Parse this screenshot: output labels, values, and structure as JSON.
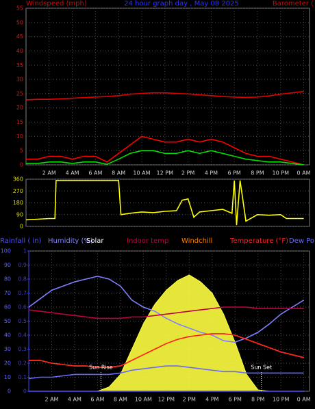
{
  "chart_data": [
    {
      "type": "line",
      "title": "24 hour graph day , May 08 2025",
      "left_label": "Windspeed (mph)",
      "right_label": "Barometer (",
      "tick_color": "#d02020",
      "xlim": [
        0,
        24.5
      ],
      "xticks": [
        {
          "value": 2,
          "label": "2 AM"
        },
        {
          "value": 4,
          "label": "4 AM"
        },
        {
          "value": 6,
          "label": "6 AM"
        },
        {
          "value": 8,
          "label": "8 AM"
        },
        {
          "value": 10,
          "label": "10 AM"
        },
        {
          "value": 12,
          "label": "12 PM"
        },
        {
          "value": 14,
          "label": "2 PM"
        },
        {
          "value": 16,
          "label": "4 PM"
        },
        {
          "value": 18,
          "label": "6 PM"
        },
        {
          "value": 20,
          "label": "8 PM"
        },
        {
          "value": 22,
          "label": "10 PM"
        },
        {
          "value": 24,
          "label": "0 AM"
        }
      ],
      "ylim": [
        0,
        55
      ],
      "yticks": [
        0,
        5,
        10,
        15,
        20,
        25,
        30,
        35,
        40,
        45,
        50,
        55
      ],
      "grid": true,
      "x": [
        0,
        1,
        2,
        3,
        4,
        5,
        6,
        7,
        8,
        9,
        10,
        11,
        12,
        13,
        14,
        15,
        16,
        17,
        18,
        19,
        20,
        21,
        22,
        23,
        24
      ],
      "series": [
        {
          "name": "Barometer",
          "color": "#e00000",
          "values": [
            22.8,
            23,
            23,
            23.2,
            23.4,
            23.6,
            23.8,
            24,
            24.3,
            24.8,
            25.1,
            25.3,
            25.3,
            25.1,
            24.9,
            24.6,
            24.3,
            24,
            23.8,
            23.7,
            23.8,
            24.2,
            24.8,
            25.3,
            25.8
          ]
        },
        {
          "name": "Gust",
          "color": "#ff0000",
          "values": [
            2,
            2,
            3,
            3,
            2,
            3,
            3,
            1,
            4,
            7,
            10,
            9,
            8,
            8,
            9,
            8,
            9,
            8,
            6,
            4,
            3,
            3,
            2,
            1,
            0
          ]
        },
        {
          "name": "Average",
          "color": "#00e000",
          "values": [
            0.5,
            0.5,
            1,
            1,
            0.5,
            1,
            1,
            0.2,
            2,
            4,
            5,
            5,
            4,
            4,
            5,
            4,
            5,
            4,
            3,
            2,
            1.5,
            1,
            1,
            0.5,
            0
          ]
        }
      ]
    },
    {
      "type": "line",
      "tick_color": "#e0e000",
      "xlim": [
        0,
        24.5
      ],
      "ylim": [
        0,
        360
      ],
      "yticks": [
        0,
        90,
        180,
        270,
        360
      ],
      "grid": true,
      "x": [
        0,
        1,
        2,
        2.5,
        2.6,
        5,
        8,
        8.2,
        9,
        10,
        11,
        12,
        13,
        13.5,
        14,
        14.5,
        15,
        16,
        17,
        17.8,
        18,
        18.2,
        18.5,
        19,
        20,
        21,
        22,
        22.5,
        23,
        24
      ],
      "series": [
        {
          "name": "Direction",
          "color": "#ffff00",
          "values": [
            50,
            55,
            60,
            60,
            350,
            350,
            350,
            90,
            100,
            110,
            105,
            115,
            120,
            200,
            210,
            70,
            110,
            120,
            130,
            100,
            350,
            10,
            350,
            40,
            90,
            85,
            90,
            60,
            60,
            60
          ]
        }
      ]
    },
    {
      "type": "line",
      "tick_color": "#6060ff",
      "xlim": [
        0,
        24.5
      ],
      "xticks": [
        {
          "value": 2,
          "label": "2 AM"
        },
        {
          "value": 4,
          "label": "4 AM"
        },
        {
          "value": 6,
          "label": "6 AM"
        },
        {
          "value": 8,
          "label": "8 AM"
        },
        {
          "value": 10,
          "label": "10 AM"
        },
        {
          "value": 12,
          "label": "12 PM"
        },
        {
          "value": 14,
          "label": "2 PM"
        },
        {
          "value": 16,
          "label": "4 PM"
        },
        {
          "value": 18,
          "label": "6 PM"
        },
        {
          "value": 20,
          "label": "8 PM"
        },
        {
          "value": 22,
          "label": "10 PM"
        },
        {
          "value": 24,
          "label": "0 AM"
        }
      ],
      "ylim": [
        0,
        100
      ],
      "yticks": [
        0,
        10,
        20,
        30,
        40,
        50,
        60,
        70,
        80,
        90,
        100
      ],
      "y2lim": [
        0,
        1
      ],
      "y2ticks": [
        0,
        0.1,
        0.2,
        0.3,
        0.4,
        0.5,
        0.6,
        0.7,
        0.8,
        0.9,
        1
      ],
      "grid": true,
      "x": [
        0,
        1,
        2,
        3,
        4,
        5,
        6,
        7,
        8,
        9,
        10,
        11,
        12,
        13,
        14,
        15,
        16,
        17,
        18,
        19,
        20,
        21,
        22,
        23,
        24
      ],
      "series": [
        {
          "name": "Rainfall ( in)",
          "color": "#5050ff",
          "axis": "y2",
          "values": [
            0,
            0,
            0,
            0,
            0,
            0,
            0,
            0,
            0,
            0,
            0,
            0,
            0,
            0,
            0,
            0,
            0,
            0,
            0,
            0,
            0,
            0,
            0,
            0,
            0
          ]
        },
        {
          "name": "Humidity (%)",
          "color": "#8080ff",
          "values": [
            60,
            66,
            72,
            75,
            78,
            80,
            82,
            80,
            75,
            65,
            60,
            57,
            52,
            48,
            45,
            42,
            40,
            36,
            35,
            38,
            42,
            48,
            55,
            60,
            65
          ]
        },
        {
          "name": "Solar",
          "color": "#ffffff",
          "fill": "#ffff40",
          "area": true,
          "values": [
            0,
            0,
            0,
            0,
            0,
            0,
            0,
            3,
            12,
            30,
            48,
            62,
            72,
            79,
            83,
            78,
            70,
            55,
            35,
            12,
            1,
            0,
            0,
            0,
            0
          ]
        },
        {
          "name": "Indoor temp",
          "color": "#c00040",
          "values": [
            58,
            57,
            56,
            55,
            54,
            53,
            52,
            52,
            52,
            53,
            53,
            54,
            55,
            56,
            57,
            58,
            59,
            60,
            60,
            60,
            59,
            59,
            59,
            59,
            59
          ]
        },
        {
          "name": "Windchill",
          "color": "#ff8000",
          "values": [
            22,
            22,
            20,
            19,
            18,
            18,
            17,
            17,
            18,
            22,
            26,
            30,
            34,
            37,
            39,
            40,
            41,
            41,
            40,
            37,
            34,
            31,
            28,
            26,
            24
          ]
        },
        {
          "name": "Temperature (°F)",
          "color": "#ff2020",
          "values": [
            22,
            22,
            20,
            19,
            18,
            18,
            17,
            17,
            18,
            22,
            26,
            30,
            34,
            37,
            39,
            40,
            41,
            41,
            40,
            37,
            34,
            31,
            28,
            26,
            24
          ]
        },
        {
          "name": "Dew Po",
          "color": "#6a6aff",
          "values": [
            9,
            10,
            10,
            11,
            12,
            12,
            12,
            12,
            13,
            15,
            16,
            17,
            18,
            18,
            17,
            16,
            15,
            14,
            14,
            13,
            13,
            13,
            13,
            13,
            13
          ]
        }
      ],
      "annotations": [
        {
          "text": "Sun Rise",
          "x": 6.3
        },
        {
          "text": "Sun Set",
          "x": 20.3
        }
      ]
    }
  ]
}
